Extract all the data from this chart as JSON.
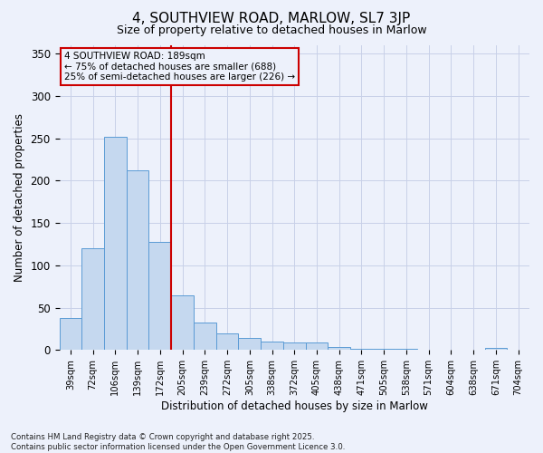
{
  "title": "4, SOUTHVIEW ROAD, MARLOW, SL7 3JP",
  "subtitle": "Size of property relative to detached houses in Marlow",
  "xlabel": "Distribution of detached houses by size in Marlow",
  "ylabel": "Number of detached properties",
  "bar_labels": [
    "39sqm",
    "72sqm",
    "106sqm",
    "139sqm",
    "172sqm",
    "205sqm",
    "239sqm",
    "272sqm",
    "305sqm",
    "338sqm",
    "372sqm",
    "405sqm",
    "438sqm",
    "471sqm",
    "505sqm",
    "538sqm",
    "571sqm",
    "604sqm",
    "638sqm",
    "671sqm",
    "704sqm"
  ],
  "bar_values": [
    38,
    120,
    252,
    212,
    128,
    65,
    33,
    20,
    14,
    10,
    9,
    9,
    4,
    1,
    1,
    1,
    0,
    0,
    0,
    3,
    0
  ],
  "bar_color": "#c5d8ef",
  "bar_edge_color": "#5b9bd5",
  "ylim": [
    0,
    360
  ],
  "yticks": [
    0,
    50,
    100,
    150,
    200,
    250,
    300,
    350
  ],
  "vline_color": "#cc0000",
  "annotation_line1": "4 SOUTHVIEW ROAD: 189sqm",
  "annotation_line2": "← 75% of detached houses are smaller (688)",
  "annotation_line3": "25% of semi-detached houses are larger (226) →",
  "annotation_box_color": "#cc0000",
  "bg_color": "#edf1fb",
  "grid_color": "#c8d0e8",
  "footer_text": "Contains HM Land Registry data © Crown copyright and database right 2025.\nContains public sector information licensed under the Open Government Licence 3.0."
}
